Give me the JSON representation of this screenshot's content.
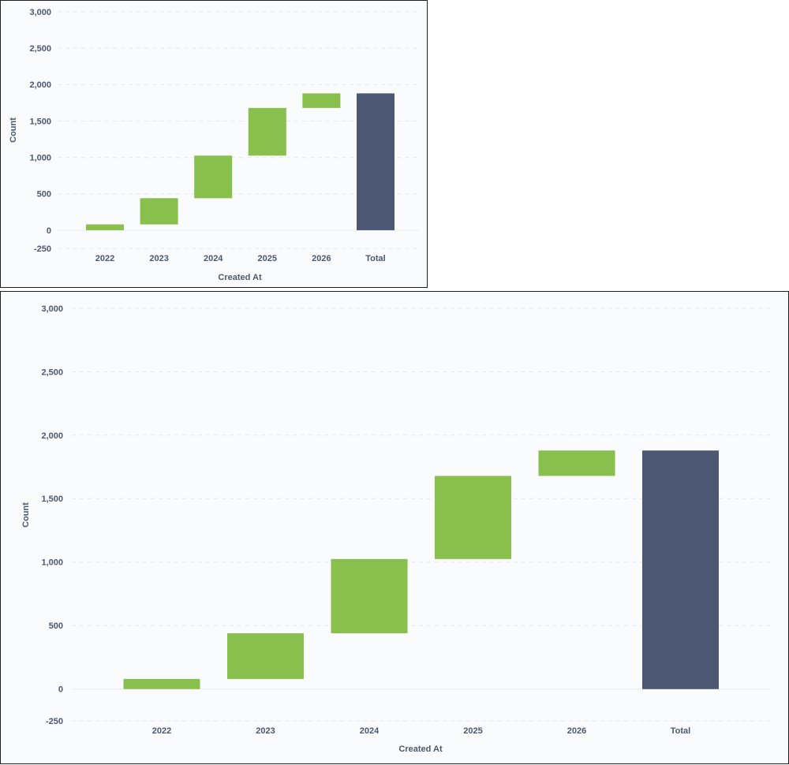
{
  "chart_data": [
    {
      "type": "bar",
      "variant": "waterfall",
      "categories": [
        "2022",
        "2023",
        "2024",
        "2025",
        "2026",
        "Total"
      ],
      "increments": [
        80,
        360,
        585,
        655,
        200
      ],
      "total": 1880,
      "xlabel": "Created At",
      "ylabel": "Count",
      "y_ticks": [
        3000,
        2500,
        2000,
        1500,
        1000,
        500,
        0,
        -250
      ],
      "y_tick_labels": [
        "3,000",
        "2,500",
        "2,000",
        "1,500",
        "1,000",
        "500",
        "0",
        "-250"
      ],
      "ylim": [
        -250,
        3000
      ],
      "grid": true,
      "colors": {
        "increase": "#88bf4d",
        "total": "#4c5773"
      }
    },
    {
      "type": "bar",
      "variant": "waterfall",
      "categories": [
        "2022",
        "2023",
        "2024",
        "2025",
        "2026",
        "Total"
      ],
      "increments": [
        80,
        360,
        585,
        655,
        200
      ],
      "total": 1880,
      "xlabel": "Created At",
      "ylabel": "Count",
      "y_ticks": [
        3000,
        2500,
        2000,
        1500,
        1000,
        500,
        0,
        -250
      ],
      "y_tick_labels": [
        "3,000",
        "2,500",
        "2,000",
        "1,500",
        "1,000",
        "500",
        "0",
        "-250"
      ],
      "ylim": [
        -250,
        3000
      ],
      "grid": true,
      "colors": {
        "increase": "#88bf4d",
        "total": "#4c5773"
      }
    }
  ]
}
